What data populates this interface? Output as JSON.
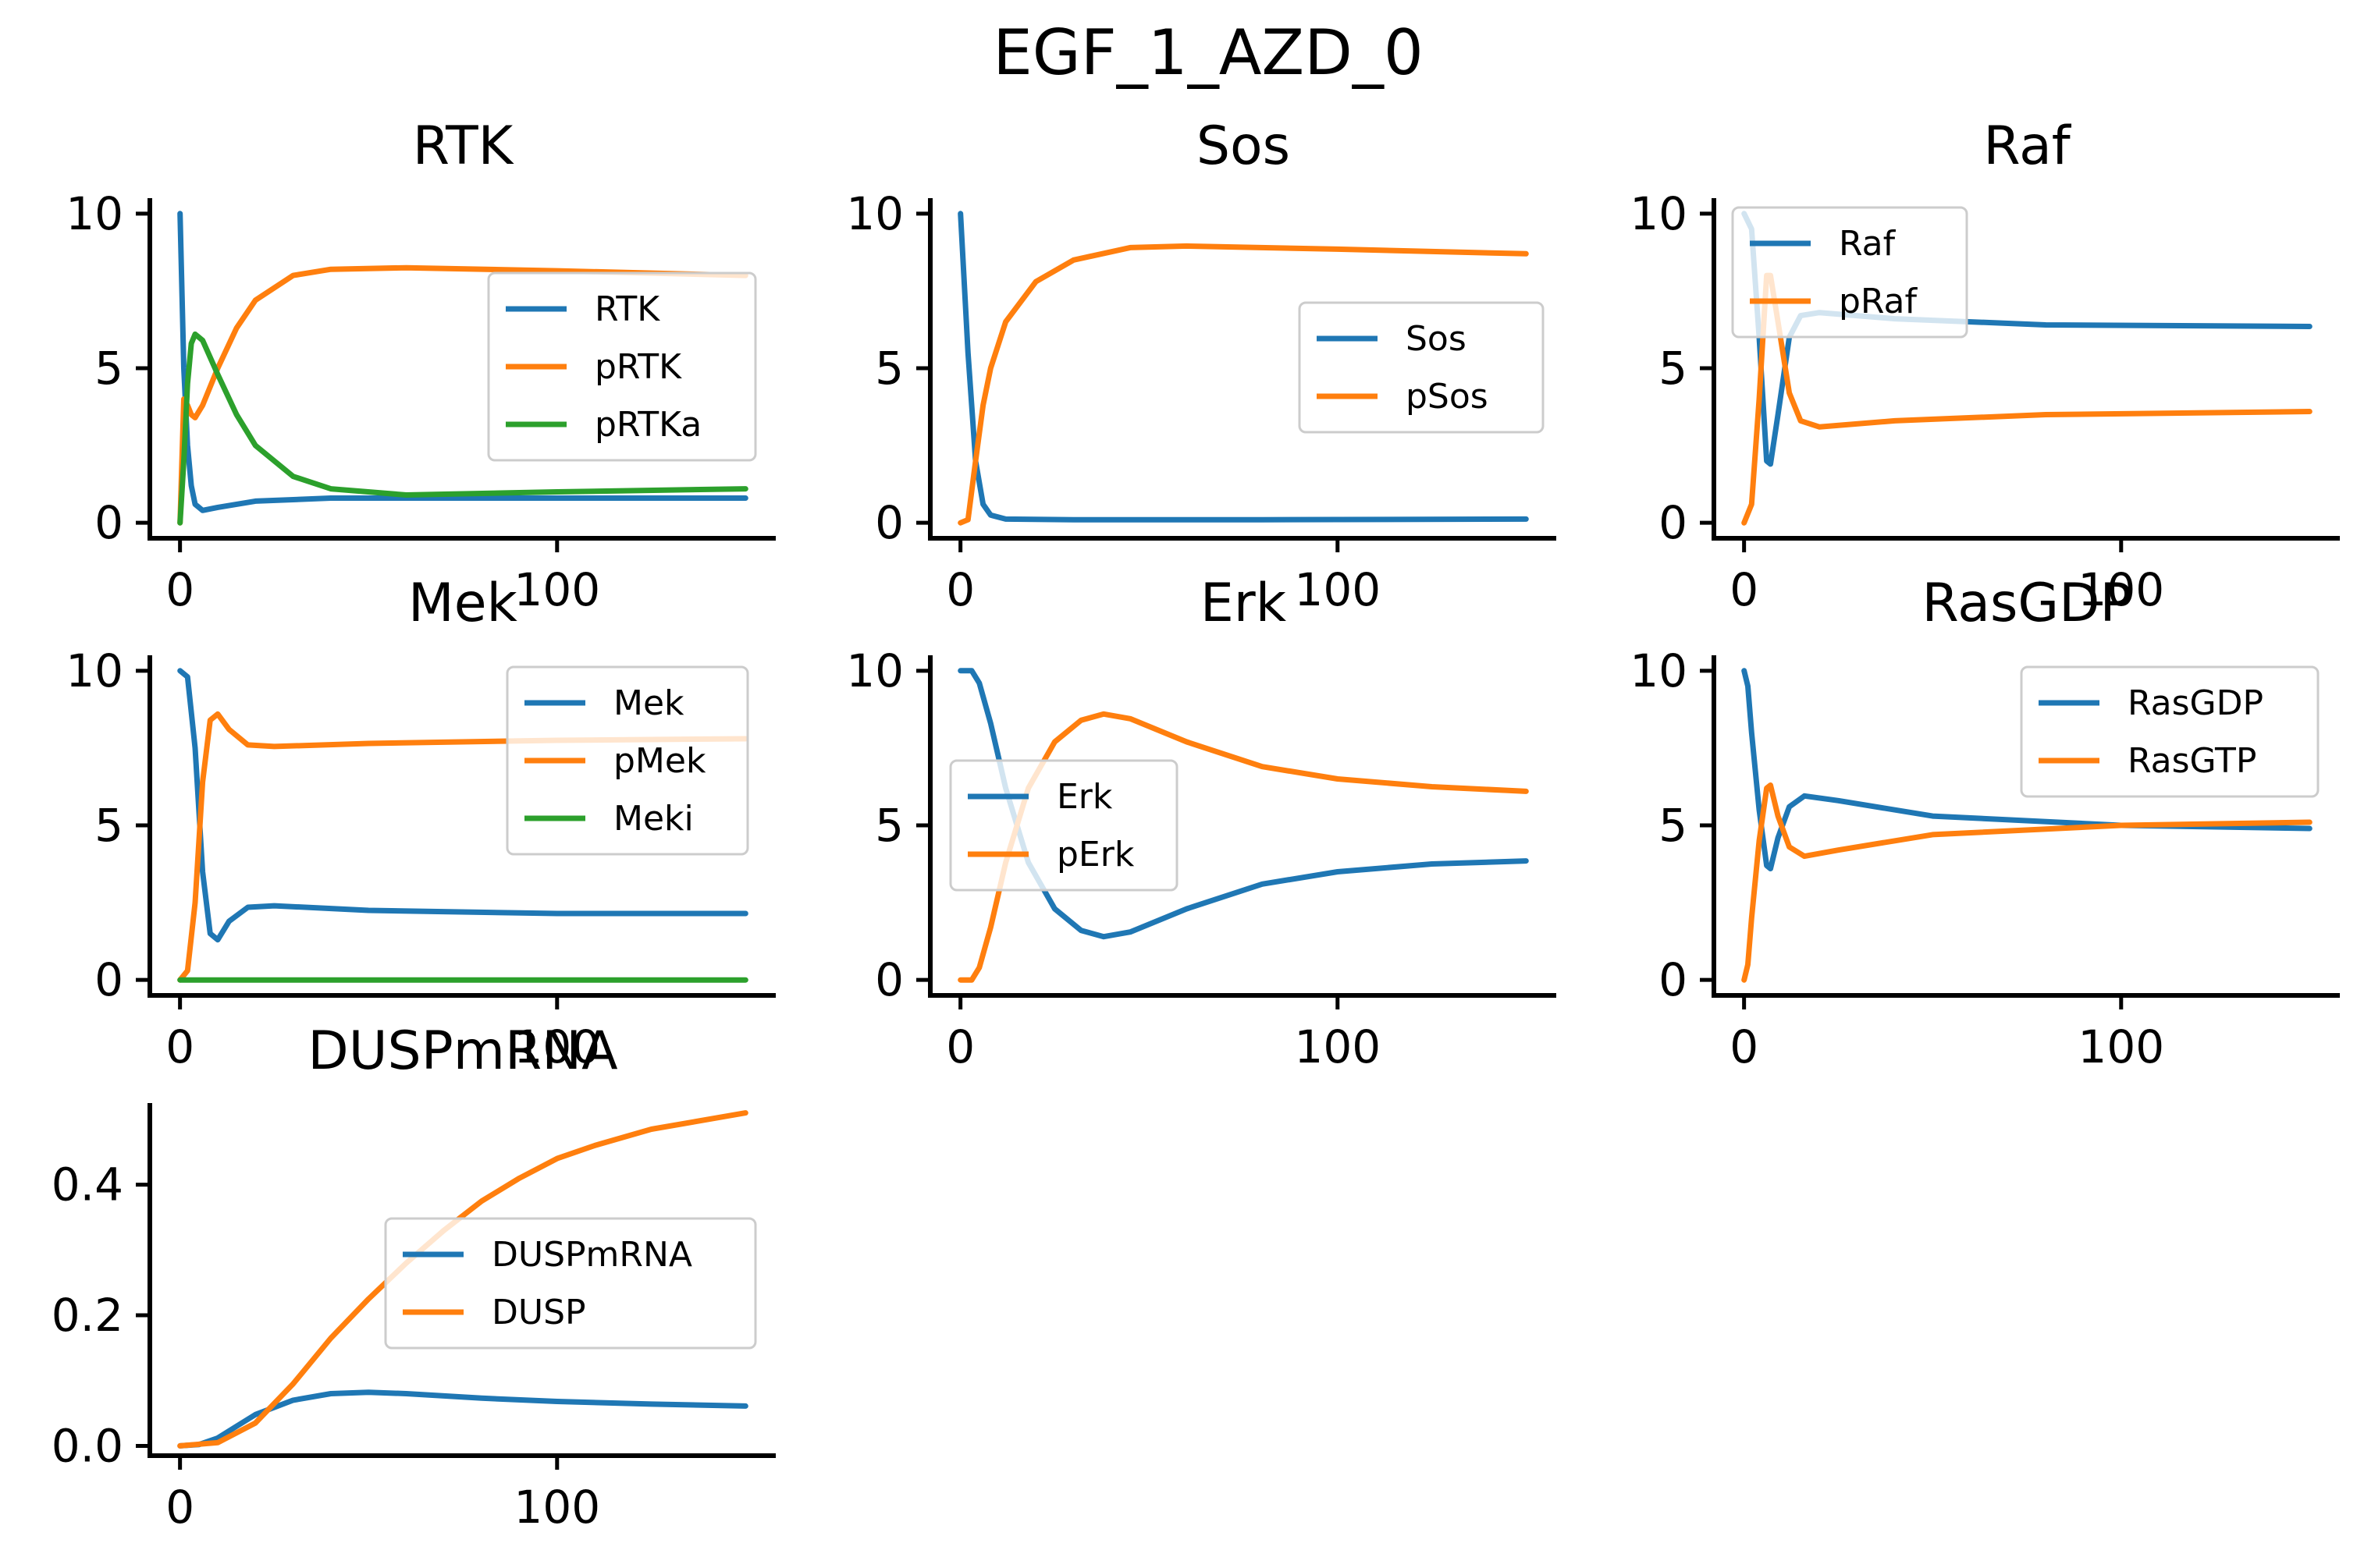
{
  "figure": {
    "suptitle": "EGF_1_AZD_0"
  },
  "colors": {
    "blue": "#1f77b4",
    "orange": "#ff7f0e",
    "green": "#2ca02c"
  },
  "chart_data": [
    {
      "type": "line",
      "title": "RTK",
      "xlim": [
        -8,
        158
      ],
      "ylim": [
        -0.5,
        10.5
      ],
      "xticks": [
        0,
        100
      ],
      "yticks": [
        0,
        5,
        10
      ],
      "ytick_labels": [
        "0",
        "5",
        "10"
      ],
      "legend": "right",
      "series": [
        {
          "name": "RTK",
          "color": "#1f77b4",
          "points": [
            [
              0,
              10
            ],
            [
              1,
              5
            ],
            [
              2,
              2.5
            ],
            [
              3,
              1.2
            ],
            [
              4,
              0.6
            ],
            [
              6,
              0.4
            ],
            [
              10,
              0.5
            ],
            [
              20,
              0.7
            ],
            [
              40,
              0.8
            ],
            [
              80,
              0.8
            ],
            [
              150,
              0.8
            ]
          ]
        },
        {
          "name": "pRTK",
          "color": "#ff7f0e",
          "points": [
            [
              0,
              0
            ],
            [
              1,
              4
            ],
            [
              2,
              3.8
            ],
            [
              3,
              3.5
            ],
            [
              4,
              3.4
            ],
            [
              6,
              3.8
            ],
            [
              10,
              5
            ],
            [
              15,
              6.3
            ],
            [
              20,
              7.2
            ],
            [
              30,
              8
            ],
            [
              40,
              8.2
            ],
            [
              60,
              8.25
            ],
            [
              100,
              8.15
            ],
            [
              150,
              8
            ]
          ]
        },
        {
          "name": "pRTKa",
          "color": "#2ca02c",
          "points": [
            [
              0,
              0
            ],
            [
              1,
              2
            ],
            [
              2,
              4.5
            ],
            [
              3,
              5.8
            ],
            [
              4,
              6.1
            ],
            [
              6,
              5.9
            ],
            [
              10,
              4.8
            ],
            [
              15,
              3.5
            ],
            [
              20,
              2.5
            ],
            [
              30,
              1.5
            ],
            [
              40,
              1.1
            ],
            [
              60,
              0.9
            ],
            [
              100,
              1
            ],
            [
              150,
              1.1
            ]
          ]
        }
      ]
    },
    {
      "type": "line",
      "title": "Sos",
      "xlim": [
        -8,
        158
      ],
      "ylim": [
        -0.5,
        10.5
      ],
      "xticks": [
        0,
        100
      ],
      "yticks": [
        0,
        5,
        10
      ],
      "ytick_labels": [
        "0",
        "5",
        "10"
      ],
      "legend": "right",
      "series": [
        {
          "name": "Sos",
          "color": "#1f77b4",
          "points": [
            [
              0,
              10
            ],
            [
              2,
              5.5
            ],
            [
              4,
              2
            ],
            [
              6,
              0.6
            ],
            [
              8,
              0.25
            ],
            [
              12,
              0.12
            ],
            [
              30,
              0.1
            ],
            [
              80,
              0.1
            ],
            [
              150,
              0.12
            ]
          ]
        },
        {
          "name": "pSos",
          "color": "#ff7f0e",
          "points": [
            [
              0,
              0
            ],
            [
              2,
              0.1
            ],
            [
              4,
              2
            ],
            [
              6,
              3.8
            ],
            [
              8,
              5
            ],
            [
              12,
              6.5
            ],
            [
              20,
              7.8
            ],
            [
              30,
              8.5
            ],
            [
              45,
              8.9
            ],
            [
              60,
              8.95
            ],
            [
              100,
              8.85
            ],
            [
              150,
              8.7
            ]
          ]
        }
      ]
    },
    {
      "type": "line",
      "title": "Raf",
      "xlim": [
        -8,
        158
      ],
      "ylim": [
        -0.5,
        10.5
      ],
      "xticks": [
        0,
        100
      ],
      "yticks": [
        0,
        5,
        10
      ],
      "ytick_labels": [
        "0",
        "5",
        "10"
      ],
      "legend": "upper left",
      "series": [
        {
          "name": "Raf",
          "color": "#1f77b4",
          "points": [
            [
              0,
              10
            ],
            [
              2,
              9.5
            ],
            [
              4,
              6
            ],
            [
              6,
              2
            ],
            [
              7,
              1.9
            ],
            [
              9,
              3.5
            ],
            [
              12,
              6
            ],
            [
              15,
              6.7
            ],
            [
              20,
              6.8
            ],
            [
              40,
              6.6
            ],
            [
              80,
              6.4
            ],
            [
              150,
              6.35
            ]
          ]
        },
        {
          "name": "pRaf",
          "color": "#ff7f0e",
          "points": [
            [
              0,
              0
            ],
            [
              2,
              0.6
            ],
            [
              4,
              4
            ],
            [
              6,
              8
            ],
            [
              7,
              8
            ],
            [
              9,
              6.5
            ],
            [
              12,
              4.2
            ],
            [
              15,
              3.3
            ],
            [
              20,
              3.1
            ],
            [
              40,
              3.3
            ],
            [
              80,
              3.5
            ],
            [
              150,
              3.6
            ]
          ]
        }
      ]
    },
    {
      "type": "line",
      "title": "Mek",
      "xlim": [
        -8,
        158
      ],
      "ylim": [
        -0.5,
        10.5
      ],
      "xticks": [
        0,
        100
      ],
      "yticks": [
        0,
        5,
        10
      ],
      "ytick_labels": [
        "0",
        "5",
        "10"
      ],
      "legend": "upper right",
      "series": [
        {
          "name": "Mek",
          "color": "#1f77b4",
          "points": [
            [
              0,
              10
            ],
            [
              2,
              9.8
            ],
            [
              4,
              7.5
            ],
            [
              6,
              3.5
            ],
            [
              8,
              1.5
            ],
            [
              10,
              1.3
            ],
            [
              13,
              1.9
            ],
            [
              18,
              2.35
            ],
            [
              25,
              2.4
            ],
            [
              50,
              2.25
            ],
            [
              100,
              2.15
            ],
            [
              150,
              2.15
            ]
          ]
        },
        {
          "name": "pMek",
          "color": "#ff7f0e",
          "points": [
            [
              0,
              0
            ],
            [
              2,
              0.3
            ],
            [
              4,
              2.5
            ],
            [
              6,
              6.4
            ],
            [
              8,
              8.4
            ],
            [
              10,
              8.6
            ],
            [
              13,
              8.1
            ],
            [
              18,
              7.6
            ],
            [
              25,
              7.55
            ],
            [
              50,
              7.65
            ],
            [
              100,
              7.75
            ],
            [
              150,
              7.8
            ]
          ]
        },
        {
          "name": "Meki",
          "color": "#2ca02c",
          "points": [
            [
              0,
              0
            ],
            [
              150,
              0
            ]
          ]
        }
      ]
    },
    {
      "type": "line",
      "title": "Erk",
      "xlim": [
        -8,
        158
      ],
      "ylim": [
        -0.5,
        10.5
      ],
      "xticks": [
        0,
        100
      ],
      "yticks": [
        0,
        5,
        10
      ],
      "ytick_labels": [
        "0",
        "5",
        "10"
      ],
      "legend": "left",
      "series": [
        {
          "name": "Erk",
          "color": "#1f77b4",
          "points": [
            [
              0,
              10
            ],
            [
              3,
              10
            ],
            [
              5,
              9.6
            ],
            [
              8,
              8.3
            ],
            [
              12,
              6.2
            ],
            [
              18,
              3.8
            ],
            [
              25,
              2.3
            ],
            [
              32,
              1.6
            ],
            [
              38,
              1.4
            ],
            [
              45,
              1.55
            ],
            [
              60,
              2.3
            ],
            [
              80,
              3.1
            ],
            [
              100,
              3.5
            ],
            [
              125,
              3.75
            ],
            [
              150,
              3.85
            ]
          ]
        },
        {
          "name": "pErk",
          "color": "#ff7f0e",
          "points": [
            [
              0,
              0
            ],
            [
              3,
              0
            ],
            [
              5,
              0.4
            ],
            [
              8,
              1.7
            ],
            [
              12,
              3.8
            ],
            [
              18,
              6.2
            ],
            [
              25,
              7.7
            ],
            [
              32,
              8.4
            ],
            [
              38,
              8.6
            ],
            [
              45,
              8.45
            ],
            [
              60,
              7.7
            ],
            [
              80,
              6.9
            ],
            [
              100,
              6.5
            ],
            [
              125,
              6.25
            ],
            [
              150,
              6.1
            ]
          ]
        }
      ]
    },
    {
      "type": "line",
      "title": "RasGDP",
      "xlim": [
        -8,
        158
      ],
      "ylim": [
        -0.5,
        10.5
      ],
      "xticks": [
        0,
        100
      ],
      "yticks": [
        0,
        5,
        10
      ],
      "ytick_labels": [
        "0",
        "5",
        "10"
      ],
      "legend": "upper right",
      "series": [
        {
          "name": "RasGDP",
          "color": "#1f77b4",
          "points": [
            [
              0,
              10
            ],
            [
              1,
              9.5
            ],
            [
              2,
              8
            ],
            [
              4,
              5.5
            ],
            [
              6,
              3.7
            ],
            [
              7,
              3.6
            ],
            [
              9,
              4.6
            ],
            [
              12,
              5.6
            ],
            [
              16,
              5.95
            ],
            [
              25,
              5.8
            ],
            [
              50,
              5.3
            ],
            [
              100,
              5
            ],
            [
              150,
              4.9
            ]
          ]
        },
        {
          "name": "RasGTP",
          "color": "#ff7f0e",
          "points": [
            [
              0,
              0
            ],
            [
              1,
              0.5
            ],
            [
              2,
              2
            ],
            [
              4,
              4.5
            ],
            [
              6,
              6.2
            ],
            [
              7,
              6.3
            ],
            [
              9,
              5.3
            ],
            [
              12,
              4.3
            ],
            [
              16,
              4
            ],
            [
              25,
              4.2
            ],
            [
              50,
              4.7
            ],
            [
              100,
              5
            ],
            [
              150,
              5.1
            ]
          ]
        }
      ]
    },
    {
      "type": "line",
      "title": "DUSPmRNA",
      "xlim": [
        -8,
        158
      ],
      "ylim": [
        -0.015,
        0.525
      ],
      "xticks": [
        0,
        100
      ],
      "yticks": [
        0,
        0.2,
        0.4
      ],
      "ytick_labels": [
        "0.0",
        "0.2",
        "0.4"
      ],
      "legend": "right",
      "series": [
        {
          "name": "DUSPmRNA",
          "color": "#1f77b4",
          "points": [
            [
              0,
              0
            ],
            [
              5,
              0.002
            ],
            [
              10,
              0.012
            ],
            [
              15,
              0.03
            ],
            [
              20,
              0.048
            ],
            [
              30,
              0.07
            ],
            [
              40,
              0.08
            ],
            [
              50,
              0.082
            ],
            [
              60,
              0.08
            ],
            [
              80,
              0.073
            ],
            [
              100,
              0.068
            ],
            [
              125,
              0.064
            ],
            [
              150,
              0.061
            ]
          ]
        },
        {
          "name": "DUSP",
          "color": "#ff7f0e",
          "points": [
            [
              0,
              0
            ],
            [
              10,
              0.005
            ],
            [
              20,
              0.035
            ],
            [
              30,
              0.095
            ],
            [
              40,
              0.165
            ],
            [
              50,
              0.225
            ],
            [
              60,
              0.28
            ],
            [
              70,
              0.33
            ],
            [
              80,
              0.375
            ],
            [
              90,
              0.41
            ],
            [
              100,
              0.44
            ],
            [
              110,
              0.46
            ],
            [
              125,
              0.485
            ],
            [
              150,
              0.51
            ]
          ]
        }
      ]
    }
  ]
}
